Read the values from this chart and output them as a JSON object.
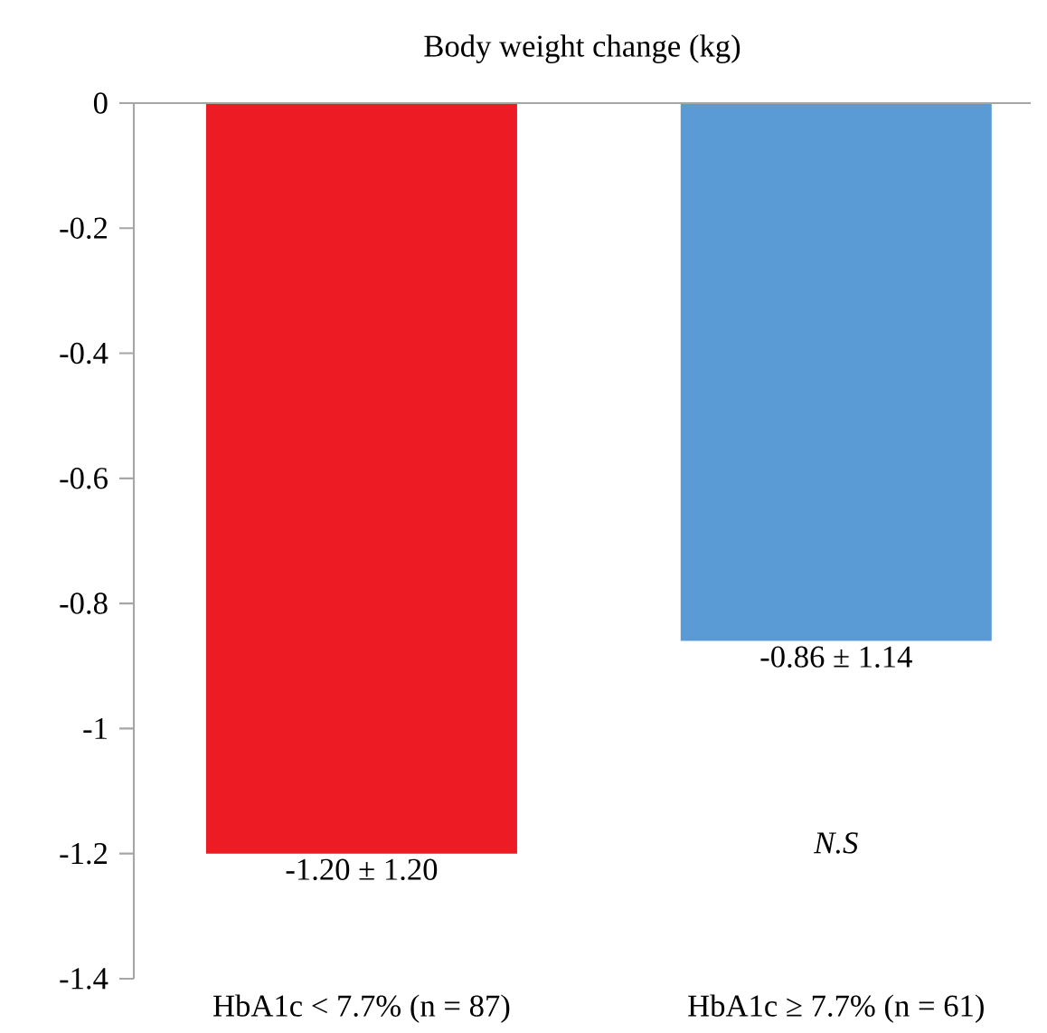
{
  "chart_data": {
    "type": "bar",
    "title": "Body weight change (kg)",
    "categories": [
      "HbA1c < 7.7% (n = 87)",
      "HbA1c ≥ 7.7% (n = 61)"
    ],
    "values": [
      -1.2,
      -0.86
    ],
    "colors": [
      "#ed1c24",
      "#5b9bd5"
    ],
    "value_labels": [
      "-1.20 ± 1.20",
      "-0.86 ± 1.14"
    ],
    "annotations": [
      "N.S"
    ],
    "ylim": [
      -1.4,
      0
    ],
    "yticks": [
      0,
      -0.2,
      -0.4,
      -0.6,
      -0.8,
      -1,
      -1.2,
      -1.4
    ],
    "grid": false
  }
}
